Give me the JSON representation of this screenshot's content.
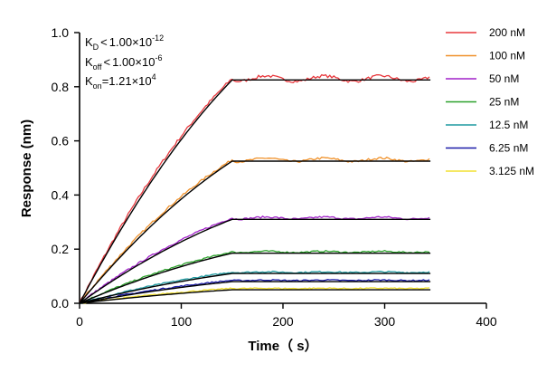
{
  "chart_data": {
    "type": "line",
    "xlabel": "Time（ s）",
    "ylabel": "Response (nm)",
    "xlim": [
      0,
      400
    ],
    "ylim": [
      0.0,
      1.0
    ],
    "x_ticks": [
      "0",
      "100",
      "200",
      "300",
      "400"
    ],
    "y_ticks": [
      "0.0",
      "0.2",
      "0.4",
      "0.6",
      "0.8",
      "1.0"
    ],
    "grid": false,
    "legend_position": "right",
    "annotations": {
      "kd": {
        "main": "K",
        "sub": "D",
        "rel": "<",
        "mant": "1.00×10",
        "exp": "-12"
      },
      "koff": {
        "main": "K",
        "sub": "off",
        "rel": "<",
        "mant": "1.00×10",
        "exp": "-6"
      },
      "kon": {
        "main": "K",
        "sub": "on",
        "rel": "=",
        "mant": "1.21×10",
        "exp": "4"
      }
    },
    "association_end": 150,
    "end_time": 345,
    "series": [
      {
        "name": "200 nM",
        "color": "#e8383d",
        "plateau": 0.83,
        "fit_plateau": 0.825,
        "curvature": 0.006
      },
      {
        "name": "100 nM",
        "color": "#f0912a",
        "plateau": 0.53,
        "fit_plateau": 0.525,
        "curvature": 0.004
      },
      {
        "name": "50 nM",
        "color": "#a020c8",
        "plateau": 0.315,
        "fit_plateau": 0.31,
        "curvature": 0.002
      },
      {
        "name": "25 nM",
        "color": "#2aa02a",
        "plateau": 0.19,
        "fit_plateau": 0.185,
        "curvature": 0.0015
      },
      {
        "name": "12.5 nM",
        "color": "#1f9aa0",
        "plateau": 0.115,
        "fit_plateau": 0.11,
        "curvature": 0.001
      },
      {
        "name": "6.25 nM",
        "color": "#1a1aa8",
        "plateau": 0.085,
        "fit_plateau": 0.08,
        "curvature": 0.001
      },
      {
        "name": "3.125 nM",
        "color": "#f2e030",
        "plateau": 0.055,
        "fit_plateau": 0.05,
        "curvature": 0.001
      }
    ]
  }
}
